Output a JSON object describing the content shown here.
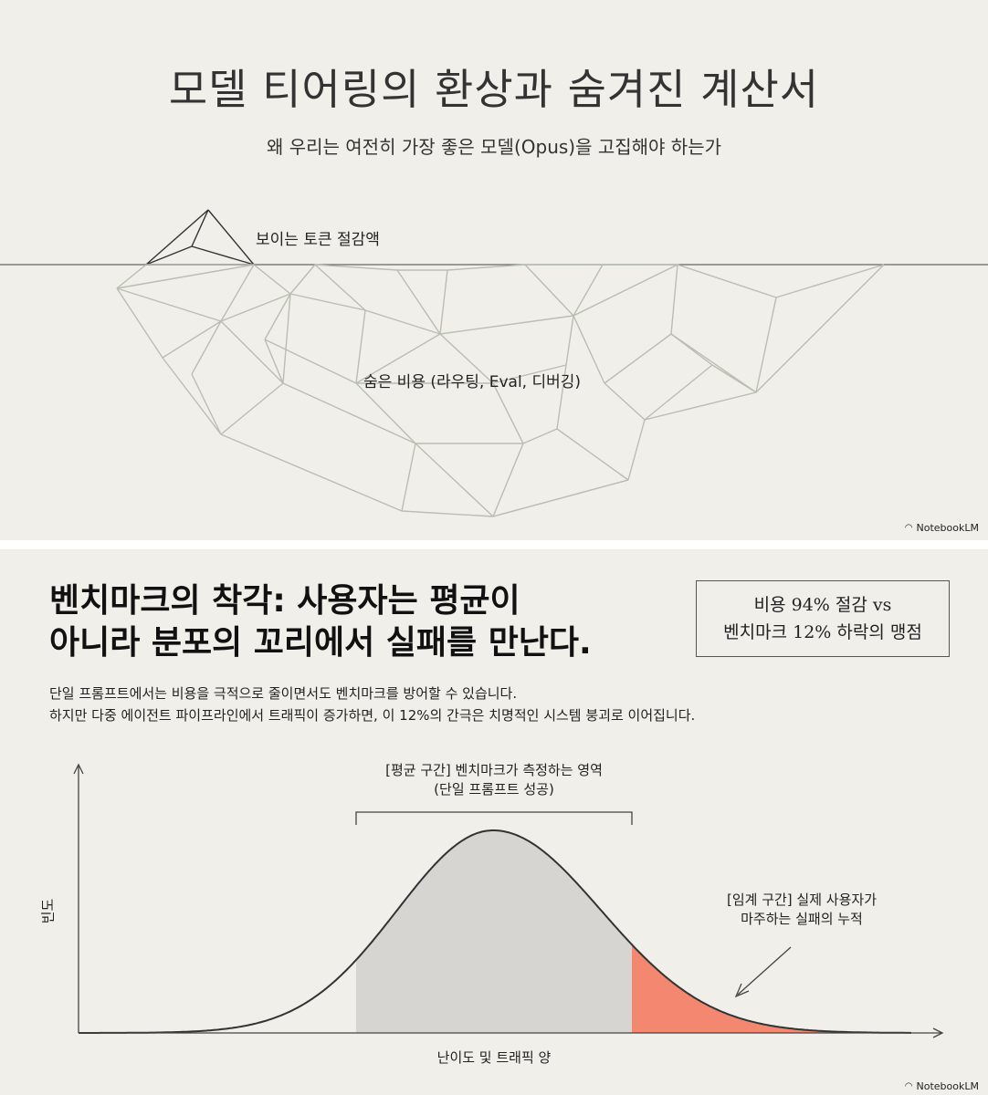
{
  "slide1": {
    "title": "모델 티어링의 환상과 숨겨진 계산서",
    "subtitle": "왜 우리는 여전히 가장 좋은 모델(Opus)을 고집해야 하는가",
    "visible_label": "보이는 토큰 절감액",
    "hidden_label": "숨은 비용 (라우팅, Eval, 디버깅)",
    "brand": "NotebookLM"
  },
  "slide2": {
    "title_line1": "벤치마크의 착각: 사용자는 평균이",
    "title_line2": "아니라 분포의 꼬리에서 실패를 만난다.",
    "callout_line1": "비용 94% 절감 vs",
    "callout_line2": "벤치마크 12% 하락의 맹점",
    "desc_line1": "단일 프롬프트에서는 비용을 극적으로 줄이면서도 벤치마크를 방어할 수 있습니다.",
    "desc_line2": "하지만 다중 에이전트 파이프라인에서 트래픽이 증가하면, 이 12%의 간극은 치명적인 시스템 붕괴로 이어집니다.",
    "mean_label_line1": "[평균 구간] 벤치마크가 측정하는 영역",
    "mean_label_line2": "(단일 프롬프트 성공)",
    "tail_label_line1": "[임계 구간] 실제 사용자가",
    "tail_label_line2": "마주하는 실패의 누적",
    "y_axis_label": "빈도",
    "x_axis_label": "난이도 및 트래픽 양",
    "brand": "NotebookLM",
    "colors": {
      "mean_fill": "#d6d5d1",
      "tail_fill": "#f4876f",
      "curve": "#333333"
    }
  }
}
